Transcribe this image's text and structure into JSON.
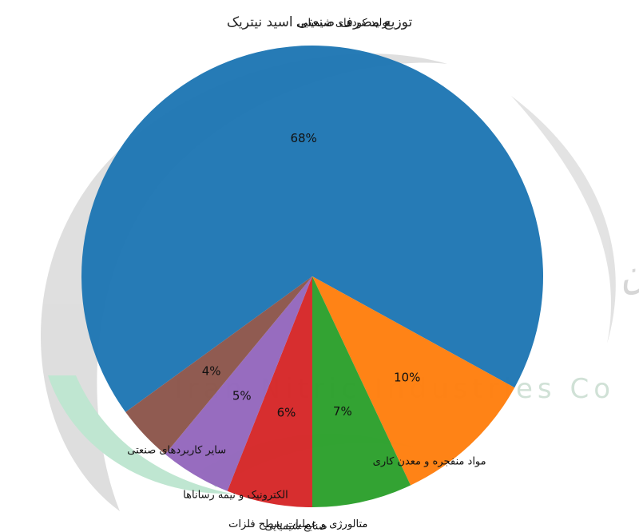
{
  "chart_data": {
    "type": "pie",
    "title": "توزیع مصرف صنعتی اسید نیتریک",
    "categories": [
      "تولید کودهای شیمیایی",
      "مواد منفجره و معدن کاری",
      "متالورژی و عملیات سطح فلزات",
      "صنایع شیمیایی",
      "الکترونیک و نیمه رسانا‌ها",
      "سایر کاربردهای صنعتی"
    ],
    "values": [
      68,
      10,
      7,
      6,
      5,
      4
    ],
    "value_labels": [
      "68%",
      "10%",
      "7%",
      "6%",
      "5%",
      "4%"
    ],
    "colors": [
      "#1f77b4",
      "#ff7f0e",
      "#2ca02c",
      "#d62728",
      "#9467bd",
      "#8c564b"
    ],
    "start_angle_deg": 216,
    "direction": "clockwise",
    "legend": "none"
  },
  "watermark": {
    "company_fa": "شرکت صنایع نیتریک ایران",
    "company_en": "Iran Nitric Industries Co",
    "colors": {
      "ring": "#d2d2d2",
      "green": "#a9dcc0",
      "text": "#c9c9c9"
    }
  }
}
